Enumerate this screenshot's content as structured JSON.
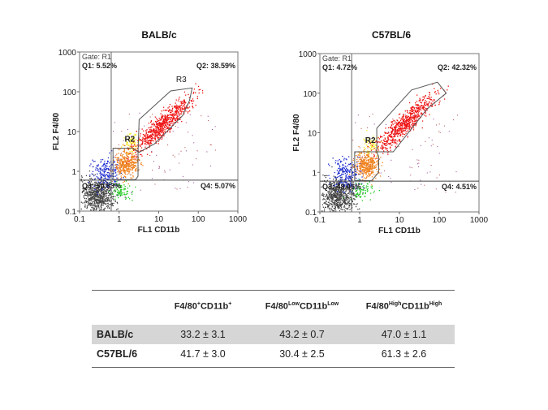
{
  "chart_data": [
    {
      "type": "scatter",
      "title": "BALB/c",
      "xlabel": "FL1 CD11b",
      "ylabel": "FL2 F4/80",
      "xscale": "log",
      "yscale": "log",
      "xlim": [
        0.1,
        1000
      ],
      "ylim": [
        0.1,
        1000
      ],
      "xticks": [
        "0.1",
        "1",
        "10",
        "100",
        "1000"
      ],
      "yticks": [
        "0.1",
        "1",
        "10",
        "100",
        "1000"
      ],
      "gate_label": "Gate: R1",
      "quadrant_threshold": {
        "x": 0.63,
        "y": 0.6
      },
      "quadrants": {
        "Q1": "Q1: 5.52%",
        "Q2": "Q2: 38.59%",
        "Q3": "Q3: 50.83%",
        "Q4": "Q4: 5.07%"
      },
      "regions": [
        {
          "label": "R2",
          "points": [
            [
              0.7,
              3.8
            ],
            [
              2.2,
              3.8
            ],
            [
              3,
              3.1
            ],
            [
              3,
              0.75
            ],
            [
              2.6,
              0.62
            ],
            [
              0.7,
              0.62
            ]
          ]
        },
        {
          "label": "R3",
          "points": [
            [
              3,
              3
            ],
            [
              3.2,
              20
            ],
            [
              20,
              105
            ],
            [
              70,
              125
            ],
            [
              60,
              60
            ],
            [
              40,
              25
            ],
            [
              8,
              5
            ],
            [
              3.2,
              3
            ]
          ]
        }
      ],
      "populations": [
        {
          "name": "Q3",
          "color": "#444444",
          "cx": 0.28,
          "cy": 0.25
        },
        {
          "name": "Q1",
          "color": "#1a2ad0",
          "cx": 0.45,
          "cy": 0.9
        },
        {
          "name": "R2",
          "color": "#f0821e",
          "cx": 1.5,
          "cy": 1.6
        },
        {
          "name": "Q4",
          "color": "#22cc22",
          "cx": 1.1,
          "cy": 0.35
        },
        {
          "name": "yellow",
          "color": "#f4e81e",
          "cx": 2.0,
          "cy": 5
        },
        {
          "name": "R3",
          "color": "#ee1111",
          "cx": 12,
          "cy": 15
        }
      ]
    },
    {
      "type": "scatter",
      "title": "C57BL/6",
      "xlabel": "FL1 CD11b",
      "ylabel": "FL2 F4/80",
      "xscale": "log",
      "yscale": "log",
      "xlim": [
        0.1,
        1000
      ],
      "ylim": [
        0.1,
        1000
      ],
      "xticks": [
        "0.1",
        "1",
        "10",
        "100",
        "1000"
      ],
      "yticks": [
        "0.1",
        "1",
        "10",
        "100",
        "1000"
      ],
      "gate_label": "Gate: R1",
      "quadrant_threshold": {
        "x": 0.63,
        "y": 0.6
      },
      "quadrants": {
        "Q1": "Q1: 4.72%",
        "Q2": "Q2: 42.32%",
        "Q3": "Q3: 48.45%",
        "Q4": "Q4: 4.51%"
      },
      "regions": [
        {
          "label": "R2",
          "points": [
            [
              0.75,
              3.3
            ],
            [
              2.7,
              3.3
            ],
            [
              3,
              2.5
            ],
            [
              3,
              1
            ],
            [
              2,
              0.62
            ],
            [
              0.75,
              0.62
            ]
          ]
        },
        {
          "label": "R3",
          "points": [
            [
              2.7,
              3.3
            ],
            [
              2.7,
              13
            ],
            [
              20,
              120
            ],
            [
              90,
              190
            ],
            [
              150,
              100
            ],
            [
              50,
              40
            ],
            [
              7,
              3.3
            ]
          ]
        }
      ],
      "populations": [
        {
          "name": "Q3",
          "color": "#444444",
          "cx": 0.28,
          "cy": 0.25
        },
        {
          "name": "Q1",
          "color": "#1a2ad0",
          "cx": 0.45,
          "cy": 0.9
        },
        {
          "name": "R2",
          "color": "#f0821e",
          "cx": 1.5,
          "cy": 1.6
        },
        {
          "name": "Q4",
          "color": "#22cc22",
          "cx": 1.1,
          "cy": 0.35
        },
        {
          "name": "yellow",
          "color": "#f4e81e",
          "cx": 2.0,
          "cy": 5
        },
        {
          "name": "R3",
          "color": "#ee1111",
          "cx": 14,
          "cy": 18
        }
      ]
    }
  ],
  "table": {
    "headers": [
      {
        "base1": "F4/80",
        "sup1": "+",
        "base2": "CD11b",
        "sup2": "+"
      },
      {
        "base1": "F4/80",
        "sup1": "Low",
        "base2": "CD11b",
        "sup2": "Low"
      },
      {
        "base1": "F4/80",
        "sup1": "High",
        "base2": "CD11b",
        "sup2": "High"
      }
    ],
    "rows": [
      {
        "label": "BALB/c",
        "values": [
          "33.2 ± 3.1",
          "43.2 ± 0.7",
          "47.0 ± 1.1"
        ]
      },
      {
        "label": "C57BL/6",
        "values": [
          "41.7 ± 3.0",
          "30.4 ± 2.5",
          "61.3 ± 2.6"
        ]
      }
    ]
  }
}
